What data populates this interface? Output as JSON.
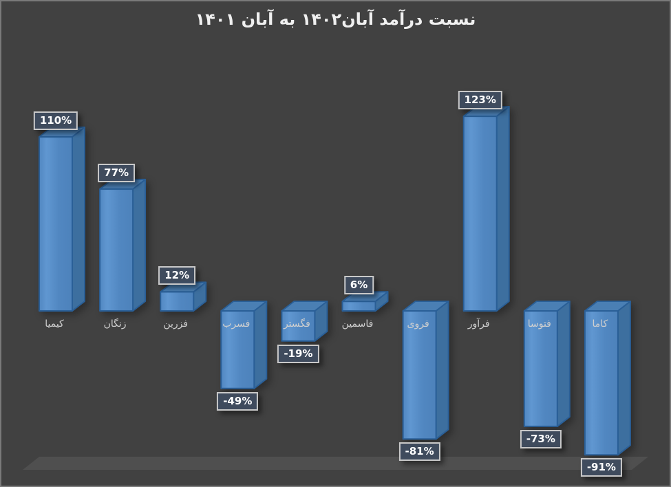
{
  "title": "نسبت درآمد آبان۱۴۰۲ به آبان ۱۴۰۱",
  "chart_data": {
    "type": "bar",
    "title": "نسبت درآمد آبان۱۴۰۲ به آبان ۱۴۰۱",
    "categories": [
      "کیمیا",
      "زنگان",
      "فزرین",
      "فسرب",
      "فگستر",
      "فاسمین",
      "فروی",
      "فرآور",
      "فتوسا",
      "کاما"
    ],
    "values": [
      110,
      77,
      12,
      -49,
      -19,
      6,
      -81,
      123,
      -73,
      -91
    ],
    "value_labels": [
      "110%",
      "77%",
      "12%",
      "-49%",
      "-19%",
      "6%",
      "-81%",
      "123%",
      "-73%",
      "-91%"
    ],
    "xlabel": "",
    "ylabel": "",
    "ylim": [
      -100,
      140
    ],
    "grid": false,
    "legend": false,
    "style": "3d-column",
    "colors": {
      "background": "#414141",
      "frame_border": "#7A7A7A",
      "floor": "#4F4F4F",
      "bar_front_light": "#6097D1",
      "bar_front": "#5187C1",
      "bar_front_dark": "#4D82BB",
      "bar_side": "#3D6F9F",
      "bar_top": "#4A7FB4",
      "bar_stroke": "#2A5F97",
      "label_box_bg": "#3F4C5F",
      "label_box_border": "#C9C9C9",
      "label_text": "#FFFFFF",
      "category_text": "#CFCFCF",
      "title_text": "#F0F0F0"
    }
  }
}
